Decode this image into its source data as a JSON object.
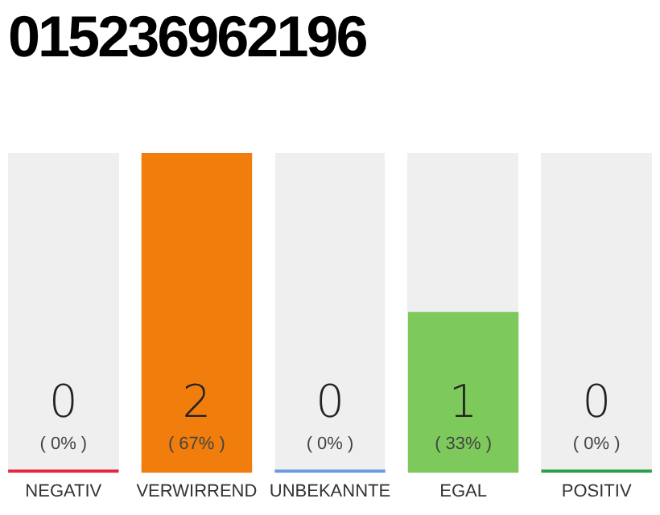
{
  "chart_data": {
    "type": "bar",
    "title": "015236962196",
    "categories": [
      "NEGATIV",
      "VERWIRREND",
      "UNBEKANNTE",
      "EGAL",
      "POSITIV"
    ],
    "values": [
      0,
      2,
      0,
      1,
      0
    ],
    "colors": [
      "#e8263f",
      "#f07d0c",
      "#6a9be0",
      "#7dc95b",
      "#2aa04a"
    ],
    "ylim": [
      0,
      2
    ],
    "tick_labels": "x",
    "grid": false,
    "legend": false,
    "data_labels": true,
    "annotations": [
      "( 0% )",
      "( 67% )",
      "( 0% )",
      "( 33% )",
      "( 0% )"
    ]
  }
}
